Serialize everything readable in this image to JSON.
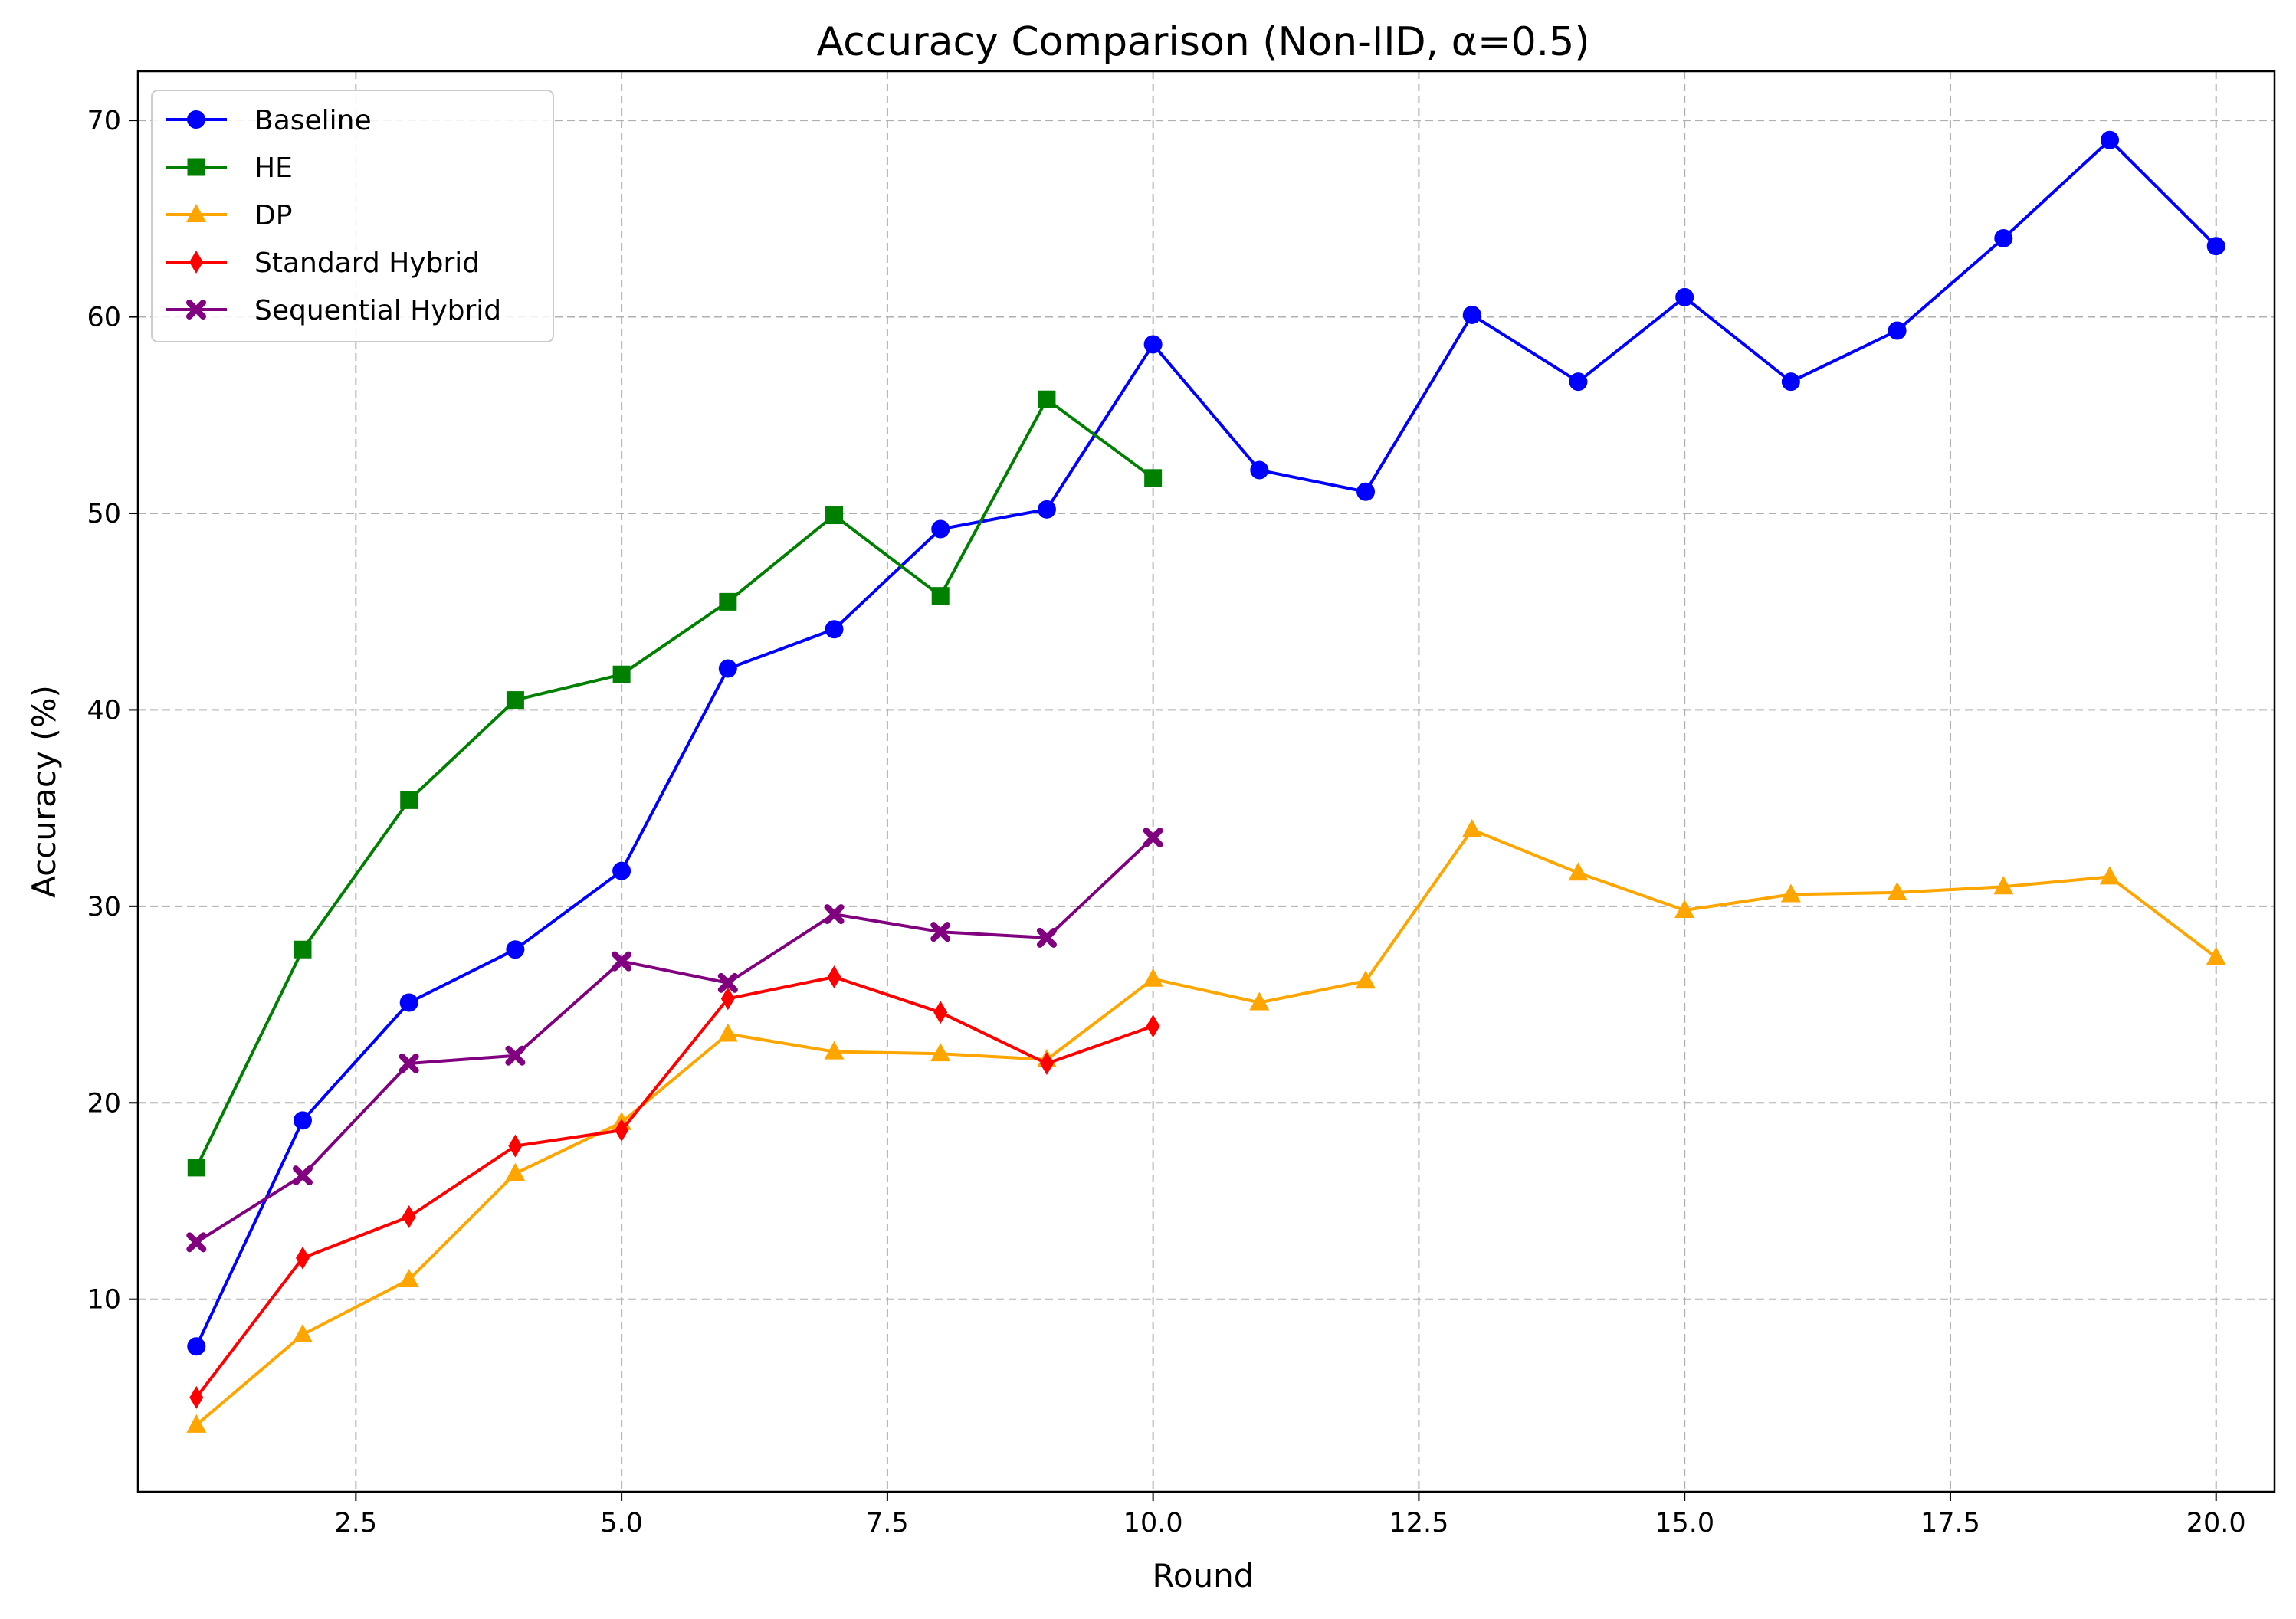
{
  "chart_data": {
    "type": "line",
    "title": "Accuracy Comparison (Non-IID, α=0.5)",
    "xlabel": "Round",
    "ylabel": "Accuracy (%)",
    "xlim": [
      0.45,
      20.55
    ],
    "ylim": [
      0.2,
      72.5
    ],
    "xticks": [
      2.5,
      5.0,
      7.5,
      10.0,
      12.5,
      15.0,
      17.5,
      20.0
    ],
    "xtick_labels": [
      "2.5",
      "5.0",
      "7.5",
      "10.0",
      "12.5",
      "15.0",
      "17.5",
      "20.0"
    ],
    "yticks": [
      10,
      20,
      30,
      40,
      50,
      60,
      70
    ],
    "ytick_labels": [
      "10",
      "20",
      "30",
      "40",
      "50",
      "60",
      "70"
    ],
    "grid": true,
    "legend_position": "top-left",
    "series": [
      {
        "name": "Baseline",
        "color": "#0000ff",
        "marker": "circle",
        "x": [
          1,
          2,
          3,
          4,
          5,
          6,
          7,
          8,
          9,
          10,
          11,
          12,
          13,
          14,
          15,
          16,
          17,
          18,
          19,
          20
        ],
        "y": [
          7.6,
          19.1,
          25.1,
          27.8,
          31.8,
          42.1,
          44.1,
          49.2,
          50.2,
          58.6,
          52.2,
          51.1,
          60.1,
          56.7,
          61.0,
          56.7,
          59.3,
          64.0,
          69.0,
          63.6
        ]
      },
      {
        "name": "HE",
        "color": "#008000",
        "marker": "square",
        "x": [
          1,
          2,
          3,
          4,
          5,
          6,
          7,
          8,
          9,
          10
        ],
        "y": [
          16.7,
          27.8,
          35.4,
          40.5,
          41.8,
          45.5,
          49.9,
          45.8,
          55.8,
          51.8
        ]
      },
      {
        "name": "DP",
        "color": "#ffa500",
        "marker": "triangle",
        "x": [
          1,
          2,
          3,
          4,
          5,
          6,
          7,
          8,
          9,
          10,
          11,
          12,
          13,
          14,
          15,
          16,
          17,
          18,
          19,
          20
        ],
        "y": [
          3.6,
          8.2,
          11.0,
          16.4,
          19.0,
          23.5,
          22.6,
          22.5,
          22.2,
          26.3,
          25.1,
          26.2,
          33.9,
          31.7,
          29.8,
          30.6,
          30.7,
          31.0,
          31.5,
          27.4
        ]
      },
      {
        "name": "Standard Hybrid",
        "color": "#ff0000",
        "marker": "diamond",
        "x": [
          1,
          2,
          3,
          4,
          5,
          6,
          7,
          8,
          9,
          10
        ],
        "y": [
          5.0,
          12.1,
          14.2,
          17.8,
          18.6,
          25.3,
          26.4,
          24.6,
          22.0,
          23.9
        ]
      },
      {
        "name": "Sequential Hybrid",
        "color": "#800080",
        "marker": "x",
        "x": [
          1,
          2,
          3,
          4,
          5,
          6,
          7,
          8,
          9,
          10
        ],
        "y": [
          12.9,
          16.3,
          22.0,
          22.4,
          27.2,
          26.1,
          29.6,
          28.7,
          28.4,
          33.5
        ]
      }
    ]
  }
}
